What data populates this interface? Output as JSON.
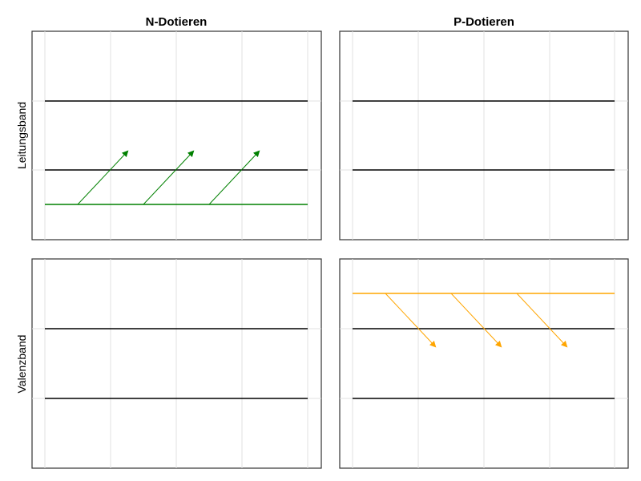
{
  "columns": [
    {
      "title": "N-Dotieren",
      "level_color": "#008000",
      "direction": "up"
    },
    {
      "title": "P-Dotieren",
      "level_color": "#ffa500",
      "direction": "down"
    }
  ],
  "rows": [
    {
      "label": "Leitungsband"
    },
    {
      "label": "Valenzband"
    }
  ],
  "panels": [
    {
      "row": 0,
      "col": 0,
      "has_level": true
    },
    {
      "row": 0,
      "col": 1,
      "has_level": false
    },
    {
      "row": 1,
      "col": 0,
      "has_level": false
    },
    {
      "row": 1,
      "col": 1,
      "has_level": true
    }
  ]
}
